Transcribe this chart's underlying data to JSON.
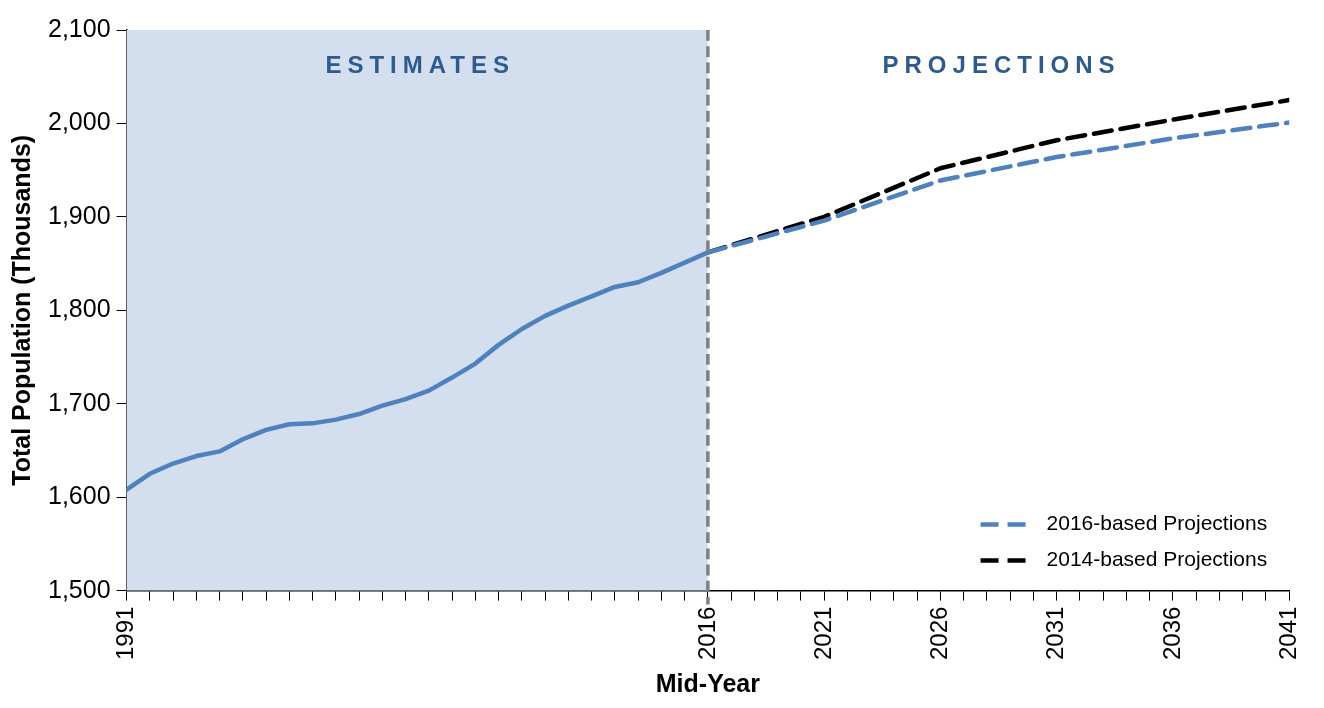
{
  "chart_data": {
    "type": "line",
    "xlabel": "Mid-Year",
    "ylabel": "Total Population (Thousands)",
    "xlim": [
      1991,
      2041
    ],
    "xticks": [
      1991,
      {
        "value": 1992,
        "label": null
      },
      {
        "value": 1993,
        "label": null
      },
      {
        "value": 1994,
        "label": null
      },
      {
        "value": 1995,
        "label": null
      },
      {
        "value": 1996,
        "label": null
      },
      {
        "value": 1997,
        "label": null
      },
      {
        "value": 1998,
        "label": null
      },
      {
        "value": 1999,
        "label": null
      },
      {
        "value": 2000,
        "label": null
      },
      {
        "value": 2001,
        "label": null
      },
      {
        "value": 2002,
        "label": null
      },
      {
        "value": 2003,
        "label": null
      },
      {
        "value": 2004,
        "label": null
      },
      {
        "value": 2005,
        "label": null
      },
      {
        "value": 2006,
        "label": null
      },
      {
        "value": 2007,
        "label": null
      },
      {
        "value": 2008,
        "label": null
      },
      {
        "value": 2009,
        "label": null
      },
      {
        "value": 2010,
        "label": null
      },
      {
        "value": 2011,
        "label": null
      },
      {
        "value": 2012,
        "label": null
      },
      {
        "value": 2013,
        "label": null
      },
      {
        "value": 2014,
        "label": null
      },
      {
        "value": 2015,
        "label": null
      },
      2016,
      {
        "value": 2017,
        "label": null
      },
      {
        "value": 2018,
        "label": null
      },
      {
        "value": 2019,
        "label": null
      },
      {
        "value": 2020,
        "label": null
      },
      2021,
      {
        "value": 2022,
        "label": null
      },
      {
        "value": 2023,
        "label": null
      },
      {
        "value": 2024,
        "label": null
      },
      {
        "value": 2025,
        "label": null
      },
      2026,
      {
        "value": 2027,
        "label": null
      },
      {
        "value": 2028,
        "label": null
      },
      {
        "value": 2029,
        "label": null
      },
      {
        "value": 2030,
        "label": null
      },
      2031,
      {
        "value": 2032,
        "label": null
      },
      {
        "value": 2033,
        "label": null
      },
      {
        "value": 2034,
        "label": null
      },
      {
        "value": 2035,
        "label": null
      },
      2036,
      {
        "value": 2037,
        "label": null
      },
      {
        "value": 2038,
        "label": null
      },
      {
        "value": 2039,
        "label": null
      },
      {
        "value": 2040,
        "label": null
      },
      2041
    ],
    "ylim": [
      1500,
      2100
    ],
    "yticks": [
      {
        "value": 1500,
        "label": "1,500"
      },
      {
        "value": 1600,
        "label": "1,600"
      },
      {
        "value": 1700,
        "label": "1,700"
      },
      {
        "value": 1800,
        "label": "1,800"
      },
      {
        "value": 1900,
        "label": "1,900"
      },
      {
        "value": 2000,
        "label": "2,000"
      },
      {
        "value": 2100,
        "label": "2,100"
      }
    ],
    "grid": false,
    "legend": "bottom right",
    "marker": "none",
    "series": [
      {
        "color": "#4f81bd",
        "line_style": "solid",
        "x": [
          1991,
          1992,
          1993,
          1994,
          1995,
          1996,
          1997,
          1998,
          1999,
          2000,
          2001,
          2002,
          2003,
          2004,
          2005,
          2006,
          2007,
          2008,
          2009,
          2010,
          2011,
          2012,
          2013,
          2014,
          2015,
          2016
        ],
        "values": [
          1608,
          1625,
          1636,
          1644,
          1649,
          1662,
          1672,
          1678,
          1679,
          1683,
          1689,
          1698,
          1705,
          1714,
          1728,
          1743,
          1763,
          1780,
          1794,
          1805,
          1815,
          1825,
          1830,
          1840,
          1851,
          1862
        ]
      },
      {
        "name": "2016-based Projections",
        "color": "#4f81bd",
        "line_style": "dashed",
        "x": [
          2016,
          2021,
          2026,
          2031,
          2036,
          2041
        ],
        "values": [
          1862,
          1896,
          1939,
          1964,
          1984,
          2001
        ]
      },
      {
        "name": "2014-based Projections",
        "color": "#000000",
        "line_style": "dashed",
        "x": [
          2016,
          2021,
          2026,
          2031,
          2036,
          2041
        ],
        "values": [
          1862,
          1900,
          1952,
          1982,
          2004,
          2025
        ]
      }
    ],
    "bands": [
      {
        "axis": "x",
        "from": 1991,
        "to": 2016,
        "label": "ESTIMATES",
        "color": "#d3dfee"
      }
    ],
    "ref_lines": [
      {
        "axis": "x",
        "value": 2016,
        "color": "#808080",
        "line_style": "dashed"
      }
    ],
    "annotations": [
      "PROJECTIONS"
    ]
  }
}
